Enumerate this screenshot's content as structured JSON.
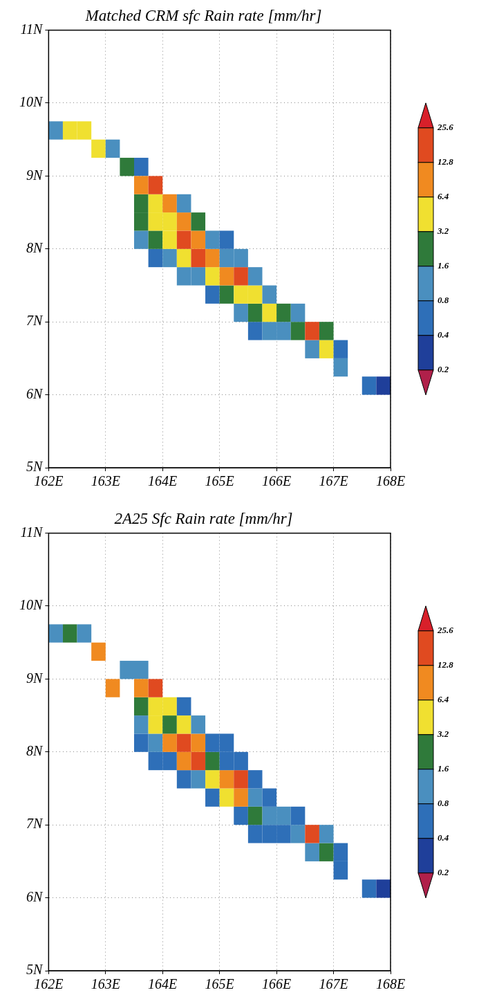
{
  "chart_data": [
    {
      "type": "heatmap",
      "title": "Matched CRM sfc Rain rate [mm/hr]",
      "xlim": [
        162,
        168
      ],
      "xticks": [
        {
          "value": 162,
          "label": "162E"
        },
        {
          "value": 163,
          "label": "163E"
        },
        {
          "value": 164,
          "label": "164E"
        },
        {
          "value": 165,
          "label": "165E"
        },
        {
          "value": 166,
          "label": "166E"
        },
        {
          "value": 167,
          "label": "167E"
        },
        {
          "value": 168,
          "label": "168E"
        }
      ],
      "ylim": [
        5,
        11
      ],
      "yticks": [
        {
          "value": 5,
          "label": "5N"
        },
        {
          "value": 6,
          "label": "6N"
        },
        {
          "value": 7,
          "label": "7N"
        },
        {
          "value": 8,
          "label": "8N"
        },
        {
          "value": 9,
          "label": "9N"
        },
        {
          "value": 10,
          "label": "10N"
        },
        {
          "value": 11,
          "label": "11N"
        }
      ],
      "grid": true,
      "cell_size": 0.25,
      "cells": [
        [
          162.125,
          9.625,
          1.2
        ],
        [
          162.375,
          9.625,
          4.0
        ],
        [
          162.625,
          9.625,
          3.5
        ],
        [
          162.875,
          9.375,
          4.0
        ],
        [
          163.125,
          9.375,
          1.0
        ],
        [
          163.375,
          9.125,
          3.0
        ],
        [
          163.625,
          9.125,
          0.6
        ],
        [
          163.625,
          8.125,
          1.0
        ],
        [
          163.625,
          8.375,
          2.0
        ],
        [
          163.625,
          8.625,
          3.0
        ],
        [
          163.625,
          8.875,
          8.0
        ],
        [
          163.875,
          7.875,
          0.6
        ],
        [
          163.875,
          8.125,
          2.5
        ],
        [
          163.875,
          8.375,
          4.0
        ],
        [
          163.875,
          8.625,
          5.0
        ],
        [
          163.875,
          8.875,
          15.0
        ],
        [
          164.125,
          7.875,
          1.2
        ],
        [
          164.125,
          8.125,
          6.0
        ],
        [
          164.125,
          8.375,
          3.5
        ],
        [
          164.125,
          8.625,
          7.0
        ],
        [
          164.375,
          7.625,
          0.8
        ],
        [
          164.375,
          7.875,
          4.5
        ],
        [
          164.375,
          8.125,
          14.0
        ],
        [
          164.375,
          8.375,
          8.0
        ],
        [
          164.375,
          8.625,
          1.0
        ],
        [
          164.625,
          7.625,
          1.5
        ],
        [
          164.625,
          7.875,
          18.0
        ],
        [
          164.625,
          8.125,
          10.0
        ],
        [
          164.625,
          8.375,
          2.0
        ],
        [
          164.875,
          7.375,
          0.7
        ],
        [
          164.875,
          7.625,
          5.0
        ],
        [
          164.875,
          7.875,
          7.0
        ],
        [
          164.875,
          8.125,
          1.2
        ],
        [
          165.125,
          7.375,
          2.0
        ],
        [
          165.125,
          7.625,
          9.0
        ],
        [
          165.125,
          7.875,
          1.0
        ],
        [
          165.125,
          8.125,
          0.5
        ],
        [
          165.375,
          7.125,
          1.0
        ],
        [
          165.375,
          7.375,
          6.0
        ],
        [
          165.375,
          7.625,
          13.0
        ],
        [
          165.375,
          7.875,
          0.8
        ],
        [
          165.625,
          6.875,
          0.6
        ],
        [
          165.625,
          7.125,
          2.5
        ],
        [
          165.625,
          7.375,
          4.0
        ],
        [
          165.625,
          7.625,
          1.5
        ],
        [
          165.875,
          6.875,
          1.2
        ],
        [
          165.875,
          7.125,
          5.0
        ],
        [
          165.875,
          7.375,
          1.0
        ],
        [
          166.125,
          6.875,
          0.9
        ],
        [
          166.125,
          7.125,
          3.0
        ],
        [
          166.375,
          6.875,
          2.0
        ],
        [
          166.375,
          7.125,
          1.2
        ],
        [
          166.625,
          6.625,
          1.5
        ],
        [
          166.625,
          6.875,
          16.0
        ],
        [
          166.875,
          6.625,
          4.0
        ],
        [
          166.875,
          6.875,
          2.0
        ],
        [
          167.125,
          6.375,
          1.0
        ],
        [
          167.125,
          6.625,
          0.7
        ],
        [
          167.625,
          6.125,
          0.5
        ],
        [
          167.875,
          6.125,
          0.3
        ]
      ],
      "colorbar": {
        "ticks": [
          0.2,
          0.4,
          0.8,
          1.6,
          3.2,
          6.4,
          12.8,
          25.6
        ],
        "colors": [
          "#b0204a",
          "#1f3f9a",
          "#2e6fb8",
          "#4a8fbf",
          "#2f7a3a",
          "#f0e030",
          "#f08a20",
          "#e04a20",
          "#d8202a"
        ]
      }
    },
    {
      "type": "heatmap",
      "title": "2A25 Sfc Rain rate [mm/hr]",
      "xlim": [
        162,
        168
      ],
      "xticks": [
        {
          "value": 162,
          "label": "162E"
        },
        {
          "value": 163,
          "label": "163E"
        },
        {
          "value": 164,
          "label": "164E"
        },
        {
          "value": 165,
          "label": "165E"
        },
        {
          "value": 166,
          "label": "166E"
        },
        {
          "value": 167,
          "label": "167E"
        },
        {
          "value": 168,
          "label": "168E"
        }
      ],
      "ylim": [
        5,
        11
      ],
      "yticks": [
        {
          "value": 5,
          "label": "5N"
        },
        {
          "value": 6,
          "label": "6N"
        },
        {
          "value": 7,
          "label": "7N"
        },
        {
          "value": 8,
          "label": "8N"
        },
        {
          "value": 9,
          "label": "9N"
        },
        {
          "value": 10,
          "label": "10N"
        },
        {
          "value": 11,
          "label": "11N"
        }
      ],
      "grid": true,
      "cell_size": 0.25,
      "cells": [
        [
          162.125,
          9.625,
          1.2
        ],
        [
          162.375,
          9.625,
          2.0
        ],
        [
          162.625,
          9.625,
          1.0
        ],
        [
          162.875,
          9.375,
          8.0
        ],
        [
          163.125,
          8.875,
          10.0
        ],
        [
          163.375,
          9.125,
          1.0
        ],
        [
          163.625,
          9.125,
          0.8
        ],
        [
          163.625,
          8.125,
          0.6
        ],
        [
          163.625,
          8.375,
          1.5
        ],
        [
          163.625,
          8.625,
          2.5
        ],
        [
          163.625,
          8.875,
          12.0
        ],
        [
          163.875,
          7.875,
          0.5
        ],
        [
          163.875,
          8.125,
          1.0
        ],
        [
          163.875,
          8.375,
          3.5
        ],
        [
          163.875,
          8.625,
          6.0
        ],
        [
          163.875,
          8.875,
          14.0
        ],
        [
          164.125,
          7.875,
          0.7
        ],
        [
          164.125,
          8.125,
          8.0
        ],
        [
          164.125,
          8.375,
          2.0
        ],
        [
          164.125,
          8.625,
          4.0
        ],
        [
          164.375,
          7.625,
          0.5
        ],
        [
          164.375,
          7.875,
          9.0
        ],
        [
          164.375,
          8.125,
          20.0
        ],
        [
          164.375,
          8.375,
          5.0
        ],
        [
          164.375,
          8.625,
          0.6
        ],
        [
          164.625,
          7.625,
          1.0
        ],
        [
          164.625,
          7.875,
          14.0
        ],
        [
          164.625,
          8.125,
          8.0
        ],
        [
          164.625,
          8.375,
          1.0
        ],
        [
          164.875,
          7.375,
          0.5
        ],
        [
          164.875,
          7.625,
          4.0
        ],
        [
          164.875,
          7.875,
          2.0
        ],
        [
          164.875,
          8.125,
          0.6
        ],
        [
          165.125,
          7.375,
          5.0
        ],
        [
          165.125,
          7.625,
          10.0
        ],
        [
          165.125,
          7.875,
          0.7
        ],
        [
          165.125,
          8.125,
          0.5
        ],
        [
          165.375,
          7.125,
          0.6
        ],
        [
          165.375,
          7.375,
          9.0
        ],
        [
          165.375,
          7.625,
          14.0
        ],
        [
          165.375,
          7.875,
          0.5
        ],
        [
          165.625,
          6.875,
          0.5
        ],
        [
          165.625,
          7.125,
          3.0
        ],
        [
          165.625,
          7.375,
          1.0
        ],
        [
          165.625,
          7.625,
          0.6
        ],
        [
          165.875,
          6.875,
          0.6
        ],
        [
          165.875,
          7.125,
          1.2
        ],
        [
          165.875,
          7.375,
          0.5
        ],
        [
          166.125,
          6.875,
          0.5
        ],
        [
          166.125,
          7.125,
          1.0
        ],
        [
          166.375,
          6.875,
          1.0
        ],
        [
          166.375,
          7.125,
          0.6
        ],
        [
          166.625,
          6.625,
          1.2
        ],
        [
          166.625,
          6.875,
          20.0
        ],
        [
          166.875,
          6.625,
          3.0
        ],
        [
          166.875,
          6.875,
          1.0
        ],
        [
          167.125,
          6.375,
          0.6
        ],
        [
          167.125,
          6.625,
          0.5
        ],
        [
          167.625,
          6.125,
          0.4
        ],
        [
          167.875,
          6.125,
          0.3
        ]
      ],
      "colorbar": {
        "ticks": [
          0.2,
          0.4,
          0.8,
          1.6,
          3.2,
          6.4,
          12.8,
          25.6
        ],
        "colors": [
          "#b0204a",
          "#1f3f9a",
          "#2e6fb8",
          "#4a8fbf",
          "#2f7a3a",
          "#f0e030",
          "#f08a20",
          "#e04a20",
          "#d8202a"
        ]
      }
    }
  ]
}
